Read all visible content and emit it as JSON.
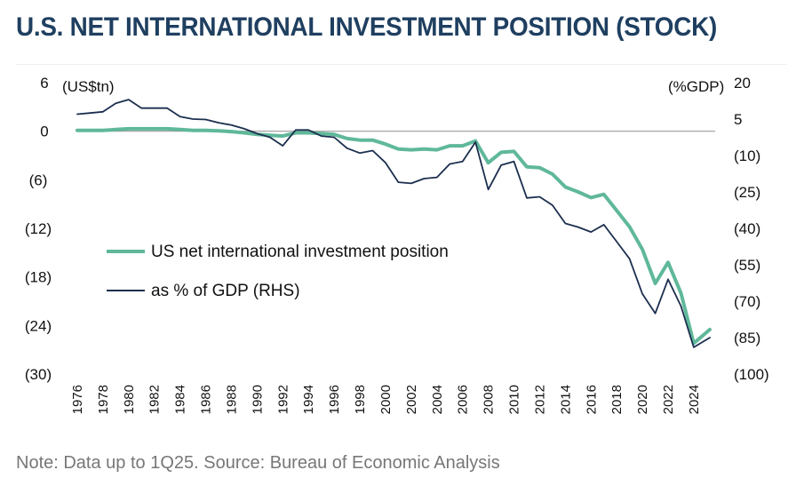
{
  "title": "U.S. NET INTERNATIONAL INVESTMENT POSITION (STOCK)",
  "note": "Note: Data up to 1Q25. Source: Bureau of Economic Analysis",
  "chart_data": {
    "type": "line",
    "left_axis": {
      "unit_label": "(US$tn)",
      "ylim": [
        -30,
        6
      ],
      "ticks": [
        6,
        0,
        -6,
        -12,
        -18,
        -24,
        -30
      ],
      "tick_labels": [
        "6",
        "0",
        "(6)",
        "(12)",
        "(18)",
        "(24)",
        "(30)"
      ]
    },
    "right_axis": {
      "unit_label": "(%GDP)",
      "ylim": [
        -100,
        20
      ],
      "ticks": [
        20,
        5,
        -10,
        -25,
        -40,
        -55,
        -70,
        -85,
        -100
      ],
      "tick_labels": [
        "20",
        "5",
        "(10)",
        "(25)",
        "(40)",
        "(55)",
        "(70)",
        "(85)",
        "(100)"
      ]
    },
    "x_tick_labels": [
      "1976",
      "1978",
      "1980",
      "1982",
      "1984",
      "1986",
      "1988",
      "1990",
      "1992",
      "1994",
      "1996",
      "1998",
      "2000",
      "2002",
      "2004",
      "2006",
      "2008",
      "2010",
      "2012",
      "2014",
      "2016",
      "2018",
      "2020",
      "2022",
      "2024"
    ],
    "xlim": [
      1976,
      2025.25
    ],
    "zero_line": true,
    "legend_placement": "center-left",
    "series": [
      {
        "name": "US net international investment position",
        "axis": "left",
        "color": "#5fb89a",
        "x": [
          1976,
          1977,
          1978,
          1979,
          1980,
          1981,
          1982,
          1983,
          1984,
          1985,
          1986,
          1987,
          1988,
          1989,
          1990,
          1991,
          1992,
          1993,
          1994,
          1995,
          1996,
          1997,
          1998,
          1999,
          2000,
          2001,
          2002,
          2003,
          2004,
          2005,
          2006,
          2007,
          2008,
          2009,
          2010,
          2011,
          2012,
          2013,
          2014,
          2015,
          2016,
          2017,
          2018,
          2019,
          2020,
          2021,
          2022,
          2023,
          2024,
          2025.25
        ],
        "values": [
          0.1,
          0.1,
          0.1,
          0.2,
          0.3,
          0.3,
          0.3,
          0.3,
          0.2,
          0.1,
          0.1,
          0.05,
          -0.05,
          -0.2,
          -0.4,
          -0.5,
          -0.6,
          -0.2,
          -0.2,
          -0.3,
          -0.4,
          -0.9,
          -1.1,
          -1.1,
          -1.6,
          -2.2,
          -2.3,
          -2.2,
          -2.3,
          -1.8,
          -1.8,
          -1.2,
          -3.9,
          -2.6,
          -2.5,
          -4.4,
          -4.5,
          -5.3,
          -6.9,
          -7.5,
          -8.2,
          -7.8,
          -9.8,
          -11.8,
          -14.6,
          -18.8,
          -16.2,
          -20.0,
          -26.2,
          -24.5
        ]
      },
      {
        "name": "as % of GDP (RHS)",
        "axis": "right",
        "color": "#1c2f4f",
        "x": [
          1976,
          1977,
          1978,
          1979,
          1980,
          1981,
          1982,
          1983,
          1984,
          1985,
          1986,
          1987,
          1988,
          1989,
          1990,
          1991,
          1992,
          1993,
          1994,
          1995,
          1996,
          1997,
          1998,
          1999,
          2000,
          2001,
          2002,
          2003,
          2004,
          2005,
          2006,
          2007,
          2008,
          2009,
          2010,
          2011,
          2012,
          2013,
          2014,
          2015,
          2016,
          2017,
          2018,
          2019,
          2020,
          2021,
          2022,
          2023,
          2024,
          2025.25
        ],
        "values": [
          7.0,
          7.5,
          8.0,
          11.5,
          13.0,
          9.5,
          9.5,
          9.5,
          6.0,
          5.0,
          4.8,
          3.5,
          2.5,
          1.0,
          -1.0,
          -2.5,
          -6.0,
          0.5,
          0.5,
          -2.0,
          -2.5,
          -7.0,
          -9.0,
          -8.0,
          -13.0,
          -21.0,
          -21.5,
          -19.5,
          -19.0,
          -13.5,
          -12.5,
          -4.5,
          -24.0,
          -14.0,
          -12.5,
          -27.5,
          -27.0,
          -30.5,
          -38.0,
          -39.5,
          -41.5,
          -38.5,
          -45.5,
          -52.5,
          -67.0,
          -75.0,
          -61.0,
          -72.0,
          -89.0,
          -85.0
        ]
      }
    ]
  }
}
